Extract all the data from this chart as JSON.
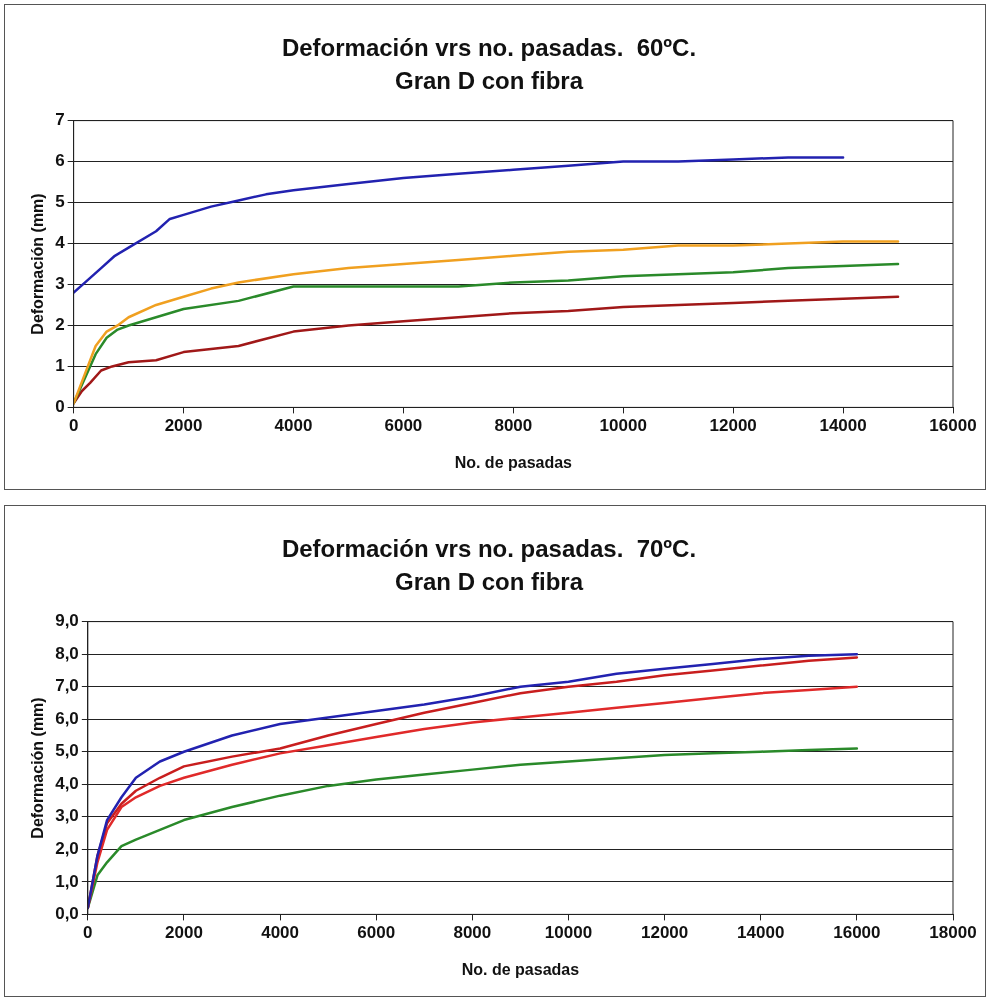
{
  "chart_data": [
    {
      "type": "line",
      "title": "Deformación vrs no. pasadas.  60ºC.",
      "subtitle": "Gran D con fibra",
      "xlabel": "No. de pasadas",
      "ylabel": "Deformación (mm)",
      "xlim": [
        0,
        16000
      ],
      "xticks": [
        0,
        2000,
        4000,
        6000,
        8000,
        10000,
        12000,
        14000,
        16000
      ],
      "ylim": [
        0,
        7
      ],
      "yticks": [
        0,
        1,
        2,
        3,
        4,
        5,
        6,
        7
      ],
      "grid": "y",
      "legend": false,
      "marker": "none",
      "line_style": "solid",
      "series": [
        {
          "color": "#2222b0",
          "x": [
            0,
            250,
            500,
            750,
            1000,
            1500,
            1750,
            2000,
            2500,
            3000,
            3500,
            4000,
            5000,
            6000,
            7000,
            8000,
            9000,
            10000,
            11000,
            12000,
            13000,
            14000
          ],
          "values": [
            2.8,
            3.1,
            3.4,
            3.7,
            3.9,
            4.3,
            4.6,
            4.7,
            4.9,
            5.05,
            5.2,
            5.3,
            5.45,
            5.6,
            5.7,
            5.8,
            5.9,
            6.0,
            6.0,
            6.05,
            6.1,
            6.1
          ]
        },
        {
          "color": "#f0a020",
          "x": [
            0,
            200,
            400,
            600,
            800,
            1000,
            1500,
            2000,
            2500,
            3000,
            4000,
            5000,
            6000,
            7000,
            8000,
            9000,
            10000,
            11000,
            12000,
            13000,
            14000,
            15000
          ],
          "values": [
            0.1,
            0.8,
            1.5,
            1.85,
            2.0,
            2.2,
            2.5,
            2.7,
            2.9,
            3.05,
            3.25,
            3.4,
            3.5,
            3.6,
            3.7,
            3.8,
            3.85,
            3.95,
            3.95,
            4.0,
            4.05,
            4.05
          ]
        },
        {
          "color": "#2a8a2a",
          "x": [
            0,
            200,
            400,
            600,
            800,
            1000,
            1500,
            2000,
            3000,
            4000,
            5000,
            6000,
            7000,
            8000,
            9000,
            10000,
            11000,
            12000,
            13000,
            14000,
            15000
          ],
          "values": [
            0.1,
            0.7,
            1.3,
            1.7,
            1.9,
            2.0,
            2.2,
            2.4,
            2.6,
            2.95,
            2.95,
            2.95,
            2.95,
            3.05,
            3.1,
            3.2,
            3.25,
            3.3,
            3.4,
            3.45,
            3.5
          ]
        },
        {
          "color": "#a01818",
          "x": [
            0,
            150,
            300,
            500,
            700,
            1000,
            1500,
            2000,
            3000,
            4000,
            5000,
            6000,
            7000,
            8000,
            9000,
            10000,
            11000,
            12000,
            13000,
            14000,
            15000
          ],
          "values": [
            0.1,
            0.4,
            0.6,
            0.9,
            1.0,
            1.1,
            1.15,
            1.35,
            1.5,
            1.85,
            2.0,
            2.1,
            2.2,
            2.3,
            2.35,
            2.45,
            2.5,
            2.55,
            2.6,
            2.65,
            2.7
          ]
        }
      ]
    },
    {
      "type": "line",
      "title": "Deformación vrs no. pasadas.  70ºC.",
      "subtitle": "Gran D con fibra",
      "xlabel": "No. de pasadas",
      "ylabel": "Deformación (mm)",
      "xlim": [
        0,
        18000
      ],
      "xticks": [
        0,
        2000,
        4000,
        6000,
        8000,
        10000,
        12000,
        14000,
        16000,
        18000
      ],
      "ylim": [
        0,
        9
      ],
      "yticks": [
        {
          "value": 0,
          "label": "0,0"
        },
        {
          "value": 1,
          "label": "1,0"
        },
        {
          "value": 2,
          "label": "2,0"
        },
        {
          "value": 3,
          "label": "3,0"
        },
        {
          "value": 4,
          "label": "4,0"
        },
        {
          "value": 5,
          "label": "5,0"
        },
        {
          "value": 6,
          "label": "6,0"
        },
        {
          "value": 7,
          "label": "7,0"
        },
        {
          "value": 8,
          "label": "8,0"
        },
        {
          "value": 9,
          "label": "9,0"
        }
      ],
      "grid": "y",
      "legend": false,
      "marker": "none",
      "line_style": "solid",
      "series": [
        {
          "color": "#2222b0",
          "x": [
            0,
            200,
            400,
            700,
            1000,
            1500,
            2000,
            3000,
            4000,
            5000,
            6000,
            7000,
            8000,
            9000,
            10000,
            11000,
            12000,
            13000,
            14000,
            15000,
            16000
          ],
          "values": [
            0.2,
            1.8,
            2.9,
            3.6,
            4.2,
            4.7,
            5.0,
            5.5,
            5.85,
            6.05,
            6.25,
            6.45,
            6.7,
            7.0,
            7.15,
            7.4,
            7.55,
            7.7,
            7.85,
            7.95,
            8.0
          ]
        },
        {
          "color": "#c81e1e",
          "x": [
            0,
            200,
            400,
            700,
            1000,
            1500,
            2000,
            3000,
            4000,
            5000,
            6000,
            7000,
            8000,
            9000,
            10000,
            11000,
            12000,
            13000,
            14000,
            15000,
            16000
          ],
          "values": [
            0.2,
            1.8,
            2.8,
            3.4,
            3.8,
            4.2,
            4.55,
            4.85,
            5.1,
            5.5,
            5.85,
            6.2,
            6.5,
            6.8,
            7.0,
            7.15,
            7.35,
            7.5,
            7.65,
            7.8,
            7.9
          ]
        },
        {
          "color": "#e02a2a",
          "x": [
            0,
            200,
            400,
            700,
            1000,
            1500,
            2000,
            3000,
            4000,
            5000,
            6000,
            7000,
            8000,
            9000,
            10000,
            11000,
            12000,
            13000,
            14000,
            15000,
            16000
          ],
          "values": [
            0.2,
            1.6,
            2.6,
            3.3,
            3.6,
            3.95,
            4.2,
            4.6,
            4.95,
            5.2,
            5.45,
            5.7,
            5.9,
            6.05,
            6.2,
            6.35,
            6.5,
            6.65,
            6.8,
            6.9,
            7.0
          ]
        },
        {
          "color": "#2a8a2a",
          "x": [
            0,
            200,
            400,
            700,
            1000,
            1500,
            2000,
            3000,
            4000,
            5000,
            6000,
            7000,
            8000,
            9000,
            10000,
            11000,
            12000,
            13000,
            14000,
            15000,
            16000
          ],
          "values": [
            0.2,
            1.2,
            1.6,
            2.1,
            2.3,
            2.6,
            2.9,
            3.3,
            3.65,
            3.95,
            4.15,
            4.3,
            4.45,
            4.6,
            4.7,
            4.8,
            4.9,
            4.95,
            5.0,
            5.05,
            5.1
          ]
        }
      ]
    }
  ]
}
